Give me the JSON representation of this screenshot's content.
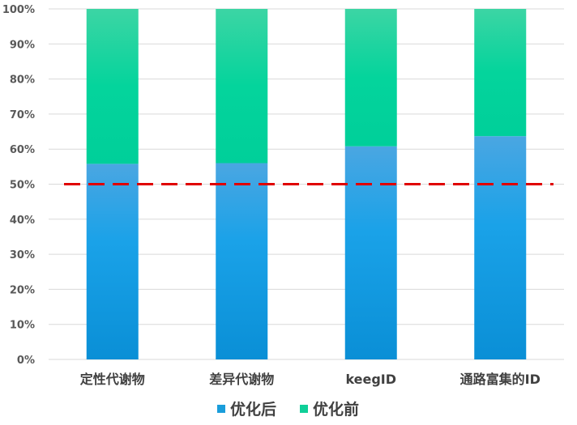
{
  "chart_data": {
    "type": "bar",
    "stacked": true,
    "percent_stacked": true,
    "categories": [
      "定性代谢物",
      "差异代谢物",
      "keegID",
      "通路富集的ID"
    ],
    "series": [
      {
        "name": "优化后",
        "values": [
          55.8,
          56.0,
          60.8,
          63.7
        ],
        "color": "#1a9ddb"
      },
      {
        "name": "优化前",
        "values": [
          44.2,
          44.0,
          39.2,
          36.3
        ],
        "color": "#0fcf98"
      }
    ],
    "ylim": [
      0,
      100
    ],
    "yticks": [
      "0%",
      "10%",
      "20%",
      "30%",
      "40%",
      "50%",
      "60%",
      "70%",
      "80%",
      "90%",
      "100%"
    ],
    "grid": true,
    "reference_line": {
      "y": 50,
      "style": "dashed",
      "color": "#e00000"
    },
    "legend_position": "bottom"
  }
}
